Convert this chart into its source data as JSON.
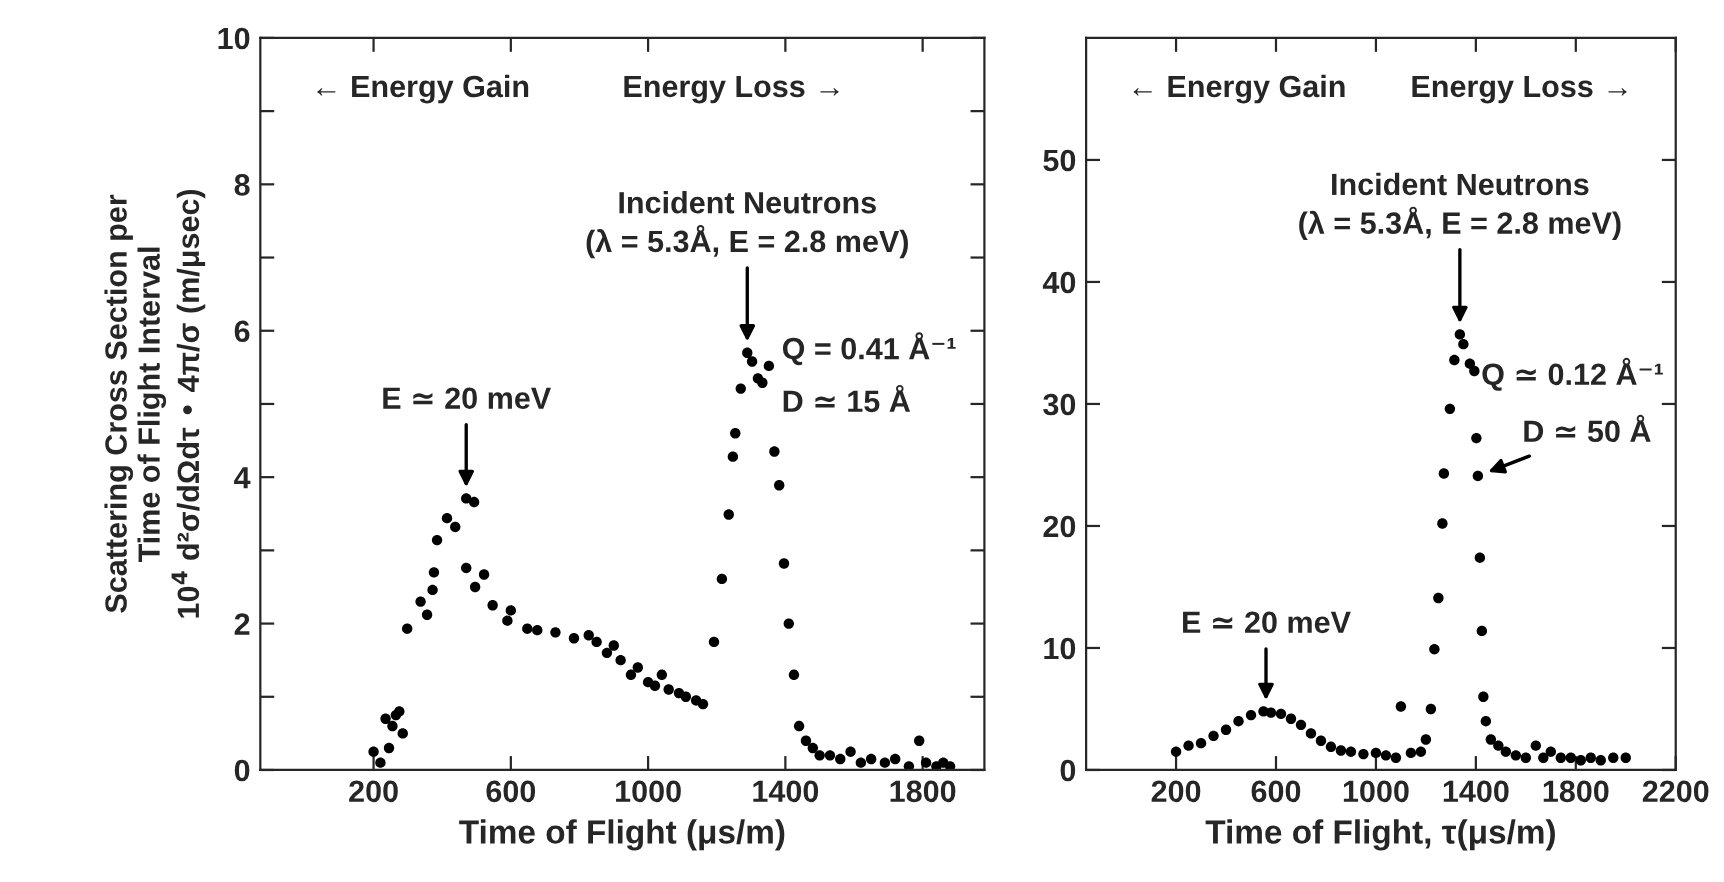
{
  "chart_data": [
    {
      "type": "scatter",
      "xlabel": "Time of Flight (μs/m)",
      "ylabel": "Scattering Cross Section per\nTime of Flight Interval\n10$^{4}$ d²σ/dΩdτ • 4π/σ (m/μsec)",
      "xlim": [
        -130,
        1980
      ],
      "ylim": [
        0,
        10
      ],
      "xticks": [
        200,
        600,
        1000,
        1400,
        1800
      ],
      "yticks": [
        0,
        {
          "value": 1,
          "label": null
        },
        2,
        {
          "value": 3,
          "label": null
        },
        4,
        {
          "value": 5,
          "label": null
        },
        6,
        {
          "value": 7,
          "label": null
        },
        8,
        {
          "value": 9,
          "label": null
        },
        10
      ],
      "marker": "circle",
      "grid": false,
      "legend": false,
      "series": [
        {
          "color": "#000000",
          "x": [
            200,
            220,
            235,
            245,
            255,
            265,
            275,
            285,
            298,
            337,
            356,
            372,
            376,
            385,
            414,
            438,
            470,
            493,
            470,
            496,
            522,
            547,
            590,
            600,
            648,
            677,
            730,
            784,
            827,
            850,
            880,
            900,
            920,
            950,
            970,
            1000,
            1020,
            1040,
            1060,
            1090,
            1110,
            1140,
            1160,
            1192,
            1215,
            1235,
            1247,
            1254,
            1270,
            1289,
            1303,
            1320,
            1333,
            1352,
            1368,
            1382,
            1396,
            1410,
            1425,
            1440,
            1460,
            1480,
            1500,
            1530,
            1560,
            1590,
            1620,
            1650,
            1690,
            1720,
            1760,
            1790,
            1810,
            1840,
            1860,
            1880
          ],
          "values": [
            0.25,
            0.1,
            0.7,
            0.3,
            0.6,
            0.75,
            0.8,
            0.5,
            1.93,
            2.3,
            2.12,
            2.46,
            2.7,
            3.14,
            3.44,
            3.32,
            3.71,
            3.66,
            2.76,
            2.5,
            2.67,
            2.25,
            2.04,
            2.18,
            1.93,
            1.91,
            1.88,
            1.8,
            1.84,
            1.75,
            1.6,
            1.7,
            1.5,
            1.3,
            1.4,
            1.2,
            1.15,
            1.3,
            1.1,
            1.05,
            1.0,
            0.95,
            0.9,
            1.75,
            2.61,
            3.49,
            4.28,
            4.6,
            5.21,
            5.7,
            5.58,
            5.35,
            5.29,
            5.52,
            4.35,
            3.89,
            2.82,
            2.0,
            1.3,
            0.6,
            0.4,
            0.3,
            0.2,
            0.2,
            0.15,
            0.25,
            0.1,
            0.15,
            0.1,
            0.15,
            0.05,
            0.4,
            0.1,
            0.05,
            0.1,
            0.05
          ]
        }
      ],
      "annotations": [
        "← Energy Gain",
        "Energy Loss →",
        {
          "text": "Incident Neutrons\n(λ = 5.3Å, E = 2.8 meV)",
          "x": 1289,
          "y": 5.7
        },
        {
          "text": "E ≃ 20 meV",
          "x": 470,
          "y": 3.71
        },
        "Q = 0.41 Å⁻¹",
        "D ≃ 15 Å"
      ]
    },
    {
      "type": "scatter",
      "xlabel": "Time of Flight, τ(μs/m)",
      "xlim": [
        -160,
        2200
      ],
      "ylim": [
        0,
        60
      ],
      "xticks": [
        200,
        600,
        1000,
        1400,
        1800,
        2200
      ],
      "yticks": [
        0,
        10,
        20,
        30,
        40,
        50
      ],
      "marker": "circle",
      "grid": false,
      "legend": false,
      "series": [
        {
          "color": "#000000",
          "x": [
            200,
            250,
            300,
            350,
            400,
            450,
            500,
            550,
            580,
            620,
            660,
            700,
            740,
            780,
            820,
            860,
            900,
            950,
            1000,
            1040,
            1080,
            1100,
            1140,
            1180,
            1200,
            1220,
            1234,
            1250,
            1266,
            1272,
            1296,
            1314,
            1336,
            1350,
            1376,
            1394,
            1402,
            1408,
            1416,
            1424,
            1430,
            1440,
            1460,
            1490,
            1520,
            1560,
            1600,
            1640,
            1670,
            1700,
            1740,
            1780,
            1820,
            1860,
            1900,
            1950,
            2000
          ],
          "values": [
            1.5,
            2.0,
            2.2,
            2.8,
            3.3,
            4.0,
            4.5,
            4.8,
            4.7,
            4.6,
            4.2,
            3.7,
            3.0,
            2.4,
            1.9,
            1.6,
            1.5,
            1.3,
            1.4,
            1.2,
            1.0,
            5.2,
            1.4,
            1.5,
            2.5,
            5.0,
            9.9,
            14.1,
            20.2,
            24.3,
            29.6,
            33.6,
            35.7,
            34.9,
            33.3,
            32.7,
            27.2,
            24.1,
            17.4,
            11.4,
            6.0,
            4.0,
            2.5,
            2.0,
            1.5,
            1.2,
            1.0,
            2.0,
            1.0,
            1.5,
            1.0,
            1.0,
            0.8,
            1.0,
            0.8,
            1.0,
            1.0
          ]
        }
      ],
      "annotations": [
        "← Energy Gain",
        "Energy Loss →",
        {
          "text": "Incident Neutrons\n(λ = 5.3Å, E = 2.8 meV)",
          "x": 1336,
          "y": 35.7
        },
        {
          "text": "E ≃ 20 meV",
          "x": 560,
          "y": 4.8
        },
        "Q ≃ 0.12 Å⁻¹",
        {
          "text": "D ≃ 50 Å",
          "x": 1408,
          "y": 24.1
        }
      ]
    }
  ]
}
